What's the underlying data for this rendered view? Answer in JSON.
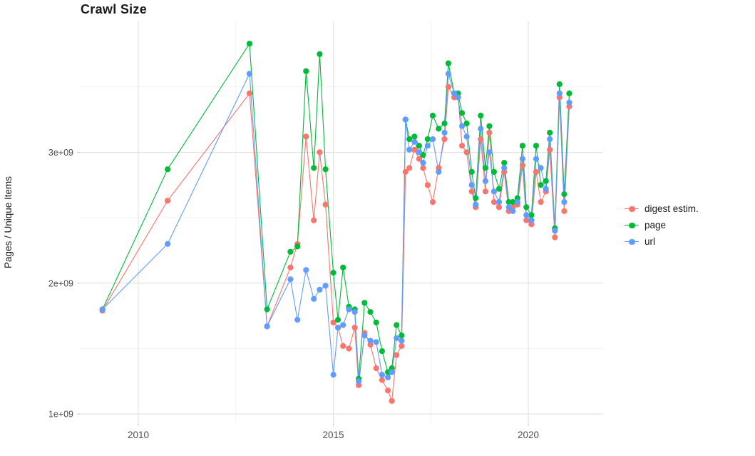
{
  "chart_data": {
    "type": "scatter",
    "title": "Crawl Size",
    "xlabel": "",
    "ylabel": "Pages / Unique Items",
    "y_unit": "1e+09 (values stored in billions)",
    "xlim": [
      2008.5,
      2021.9
    ],
    "ylim": [
      0.93,
      4.0
    ],
    "grid": "on",
    "legend_position": "right",
    "axes": {
      "ytick_values": [
        1,
        2,
        3
      ],
      "ytick_labels": [
        "1e+09",
        "2e+09",
        "3e+09"
      ],
      "xtick_values": [
        2010,
        2015,
        2020
      ],
      "xtick_labels": [
        "2010",
        "2015",
        "2020"
      ],
      "y_minor": [
        1.5,
        2.5,
        3.5
      ],
      "x_minor": [
        2012.5,
        2017.5
      ]
    },
    "style": {
      "background": "#ffffff",
      "grid_major_color": "#e2e2e2",
      "grid_minor_color": "#f1f1f1",
      "tick_color": "#c8c8c8",
      "axis_text_color": "#4d4d4d",
      "title_color": "#1a1a1a"
    },
    "x": [
      2009.08,
      2010.75,
      2012.85,
      2013.3,
      2013.9,
      2014.08,
      2014.3,
      2014.5,
      2014.65,
      2014.8,
      2015.0,
      2015.12,
      2015.25,
      2015.4,
      2015.55,
      2015.65,
      2015.8,
      2015.95,
      2016.1,
      2016.25,
      2016.4,
      2016.5,
      2016.62,
      2016.75,
      2016.85,
      2016.95,
      2017.08,
      2017.2,
      2017.3,
      2017.42,
      2017.55,
      2017.7,
      2017.85,
      2017.95,
      2018.1,
      2018.2,
      2018.3,
      2018.42,
      2018.55,
      2018.65,
      2018.78,
      2018.9,
      2019.0,
      2019.12,
      2019.25,
      2019.38,
      2019.5,
      2019.6,
      2019.72,
      2019.85,
      2019.95,
      2020.08,
      2020.2,
      2020.32,
      2020.45,
      2020.55,
      2020.68,
      2020.8,
      2020.92,
      2021.05
    ],
    "series": [
      {
        "id": "digest",
        "name": "digest estim.",
        "color": "#F8766D",
        "values": [
          1.79,
          2.63,
          3.45,
          1.67,
          2.12,
          2.3,
          3.12,
          2.48,
          3.0,
          2.6,
          1.7,
          1.66,
          1.52,
          1.5,
          1.66,
          1.22,
          1.62,
          1.53,
          1.35,
          1.26,
          1.18,
          1.1,
          1.45,
          1.52,
          2.85,
          2.88,
          3.02,
          2.95,
          2.88,
          2.75,
          2.62,
          2.88,
          3.1,
          3.5,
          3.42,
          3.42,
          3.05,
          3.0,
          2.7,
          2.58,
          3.1,
          2.7,
          3.15,
          2.62,
          2.58,
          2.85,
          2.55,
          2.58,
          2.6,
          2.9,
          2.48,
          2.45,
          2.85,
          2.62,
          2.7,
          3.02,
          2.35,
          3.42,
          2.55,
          3.35
        ]
      },
      {
        "id": "page",
        "name": "page",
        "color": "#00BA38",
        "values": [
          1.8,
          2.87,
          3.83,
          1.8,
          2.24,
          2.28,
          3.62,
          2.88,
          3.75,
          2.87,
          2.08,
          1.72,
          2.12,
          1.82,
          1.8,
          1.27,
          1.85,
          1.78,
          1.7,
          1.48,
          1.32,
          1.35,
          1.68,
          1.6,
          3.25,
          3.1,
          3.12,
          3.05,
          2.98,
          3.1,
          3.28,
          3.18,
          3.22,
          3.68,
          3.45,
          3.45,
          3.3,
          3.22,
          2.85,
          2.65,
          3.28,
          2.88,
          3.2,
          2.85,
          2.72,
          2.92,
          2.62,
          2.62,
          2.65,
          3.05,
          2.58,
          2.52,
          3.05,
          2.75,
          2.78,
          3.15,
          2.42,
          3.52,
          2.68,
          3.45
        ]
      },
      {
        "id": "url",
        "name": "url",
        "color": "#619CFF",
        "values": [
          1.8,
          2.3,
          3.6,
          1.67,
          2.03,
          1.72,
          2.1,
          1.88,
          1.95,
          1.98,
          1.3,
          1.66,
          1.68,
          1.8,
          1.78,
          1.25,
          1.6,
          1.56,
          1.55,
          1.3,
          1.28,
          1.32,
          1.58,
          1.56,
          3.25,
          3.02,
          3.08,
          3.0,
          2.92,
          3.05,
          3.1,
          2.85,
          3.15,
          3.6,
          3.45,
          3.42,
          3.2,
          3.12,
          2.75,
          2.6,
          3.18,
          2.78,
          3.0,
          2.7,
          2.62,
          2.88,
          2.58,
          2.55,
          2.62,
          2.95,
          2.52,
          2.48,
          2.95,
          2.88,
          2.72,
          3.1,
          2.4,
          3.45,
          2.62,
          3.38
        ]
      }
    ]
  }
}
